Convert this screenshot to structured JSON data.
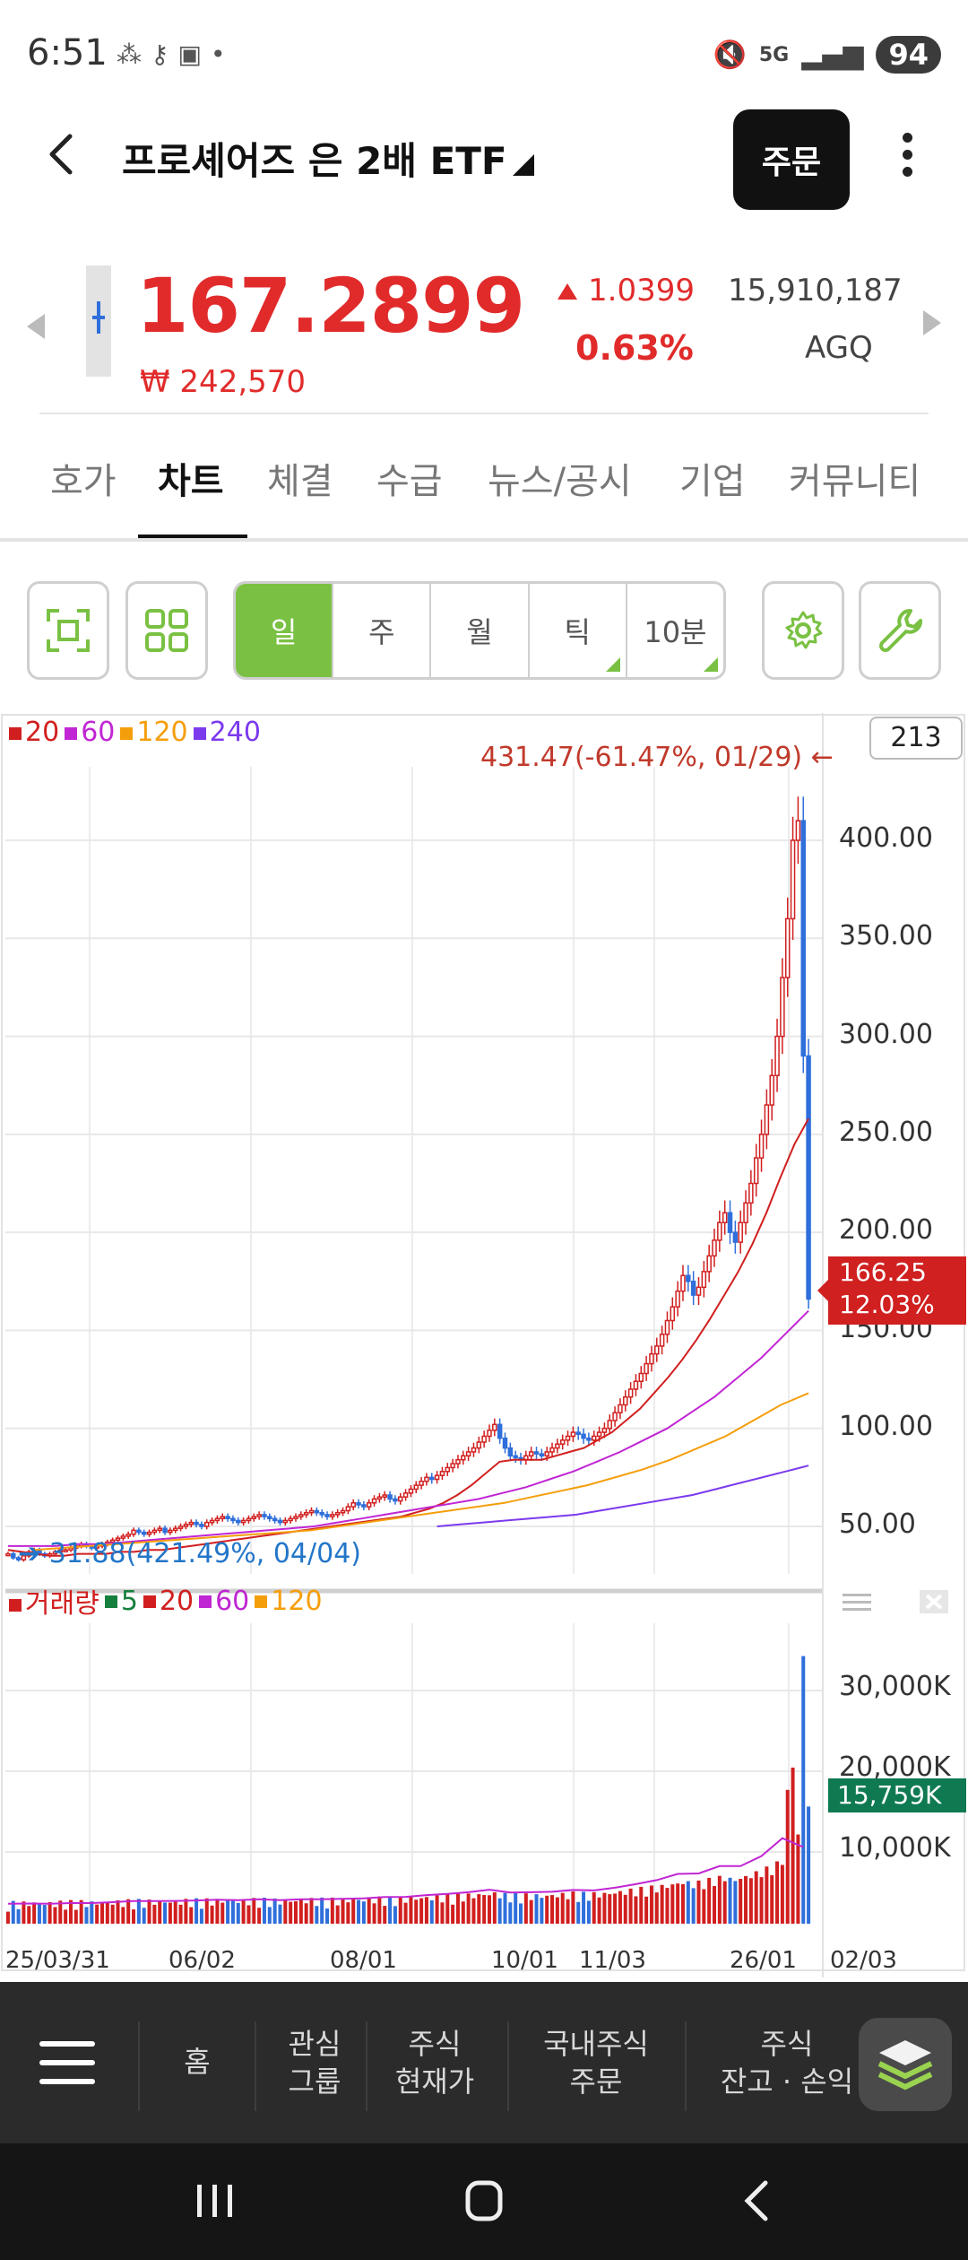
{
  "status_bar": {
    "time": "6:51",
    "left_icons": [
      "grid-icon",
      "vpn-key-icon",
      "screenshot-icon",
      "dot-icon"
    ],
    "signal": "5G",
    "battery": "94"
  },
  "header": {
    "stock_name": "프로셰어즈 은 2배 ETF",
    "order_label": "주문"
  },
  "quote": {
    "price": "167.2899",
    "krw_price": "₩ 242,570",
    "change": "1.0399",
    "change_pct": "0.63%",
    "volume": "15,910,187",
    "ticker": "AGQ",
    "color_up": "#e12b2b"
  },
  "tabs": [
    {
      "label": "호가",
      "active": false
    },
    {
      "label": "차트",
      "active": true
    },
    {
      "label": "체결",
      "active": false
    },
    {
      "label": "수급",
      "active": false
    },
    {
      "label": "뉴스/공시",
      "active": false
    },
    {
      "label": "기업",
      "active": false
    },
    {
      "label": "커뮤니티",
      "active": false
    }
  ],
  "toolbar": {
    "periods": [
      {
        "label": "일",
        "active": true
      },
      {
        "label": "주",
        "active": false
      },
      {
        "label": "월",
        "active": false
      },
      {
        "label": "틱",
        "active": false
      },
      {
        "label": "10분",
        "active": false
      }
    ],
    "accent": "#7ac143"
  },
  "chart": {
    "count": "213",
    "legend_price": [
      {
        "label": "20",
        "color": "#d11f1f"
      },
      {
        "label": "60",
        "color": "#c026d3"
      },
      {
        "label": "120",
        "color": "#f59e0b"
      },
      {
        "label": "240",
        "color": "#7c3aed"
      }
    ],
    "max_annotation": "431.47(-61.47%, 01/29)",
    "min_annotation": "31.88(421.49%, 04/04)",
    "current_price_tag": "166.25",
    "current_change_tag": "12.03%",
    "volume_tag": "15,759K",
    "legend_volume": [
      {
        "label": "거래량",
        "color": "#d11f1f"
      },
      {
        "label": "5",
        "color": "#15803d"
      },
      {
        "label": "20",
        "color": "#d11f1f"
      },
      {
        "label": "60",
        "color": "#c026d3"
      },
      {
        "label": "120",
        "color": "#f59e0b"
      }
    ]
  },
  "chart_data": {
    "type": "candlestick",
    "y_ticks": [
      "400.00",
      "350.00",
      "300.00",
      "250.00",
      "200.00",
      "150.00",
      "100.00",
      "50.00"
    ],
    "ylim": [
      30,
      440
    ],
    "volume_ticks": [
      "30,000K",
      "20,000K",
      "10,000K"
    ],
    "volume_ylim": [
      0,
      38000
    ],
    "x_ticks": [
      "25/03/31",
      "06/02",
      "08/01",
      "10/01",
      "11/03",
      "26/01",
      "02/03"
    ],
    "close": [
      36,
      34,
      33,
      35,
      37,
      38,
      36,
      35,
      36,
      37,
      38,
      38,
      39,
      40,
      41,
      40,
      39,
      40,
      41,
      42,
      43,
      44,
      45,
      46,
      48,
      47,
      46,
      47,
      48,
      49,
      47,
      48,
      49,
      50,
      51,
      52,
      51,
      50,
      52,
      53,
      54,
      55,
      54,
      53,
      52,
      53,
      54,
      55,
      56,
      55,
      54,
      53,
      52,
      53,
      54,
      55,
      56,
      57,
      58,
      57,
      56,
      55,
      56,
      57,
      58,
      60,
      62,
      61,
      60,
      62,
      64,
      65,
      66,
      64,
      63,
      65,
      67,
      69,
      71,
      73,
      75,
      74,
      76,
      78,
      80,
      82,
      84,
      86,
      88,
      90,
      93,
      96,
      99,
      102,
      95,
      90,
      86,
      85,
      84,
      86,
      88,
      87,
      86,
      88,
      90,
      92,
      94,
      96,
      98,
      97,
      95,
      94,
      96,
      98,
      100,
      104,
      108,
      112,
      116,
      120,
      124,
      128,
      133,
      138,
      142,
      148,
      155,
      162,
      170,
      178,
      175,
      168,
      172,
      180,
      188,
      196,
      205,
      210,
      200,
      195,
      205,
      215,
      225,
      238,
      250,
      265,
      280,
      300,
      330,
      360,
      400,
      410,
      290,
      166
    ],
    "ma20": [
      38,
      37,
      36,
      35,
      35,
      36,
      36,
      36,
      37,
      37,
      38,
      38,
      39,
      40,
      41,
      42,
      43,
      44,
      45,
      46,
      47,
      48,
      49,
      50,
      51,
      52,
      53,
      54,
      55,
      57,
      59,
      62,
      66,
      71,
      77,
      83,
      84,
      84,
      84,
      86,
      88,
      90,
      94,
      98,
      104,
      110,
      118,
      126,
      135,
      145,
      156,
      168,
      180,
      194,
      210,
      228,
      245,
      258
    ],
    "ma60": [
      40,
      40,
      40,
      41,
      41,
      42,
      43,
      44,
      45,
      46,
      47,
      48,
      49,
      50,
      52,
      54,
      56,
      58,
      60,
      62,
      64,
      67,
      70,
      74,
      78,
      83,
      88,
      94,
      100,
      108,
      116,
      126,
      136,
      148,
      160
    ],
    "ma120": [
      38,
      39,
      40,
      41,
      42,
      43,
      44,
      45,
      46,
      47,
      48,
      50,
      52,
      54,
      56,
      58,
      60,
      62,
      65,
      68,
      71,
      75,
      79,
      84,
      90,
      96,
      104,
      112,
      118
    ],
    "ma240": [
      50,
      51,
      52,
      53,
      54,
      55,
      56,
      58,
      60,
      62,
      64,
      66,
      69,
      72,
      75,
      78,
      81
    ]
  },
  "bottom_nav": {
    "items": [
      {
        "label": "홈"
      },
      {
        "label": "관심\n그룹"
      },
      {
        "label": "주식\n현재가"
      },
      {
        "label": "국내주식\n주문"
      },
      {
        "label": "주식\n잔고 · 손익"
      }
    ]
  }
}
